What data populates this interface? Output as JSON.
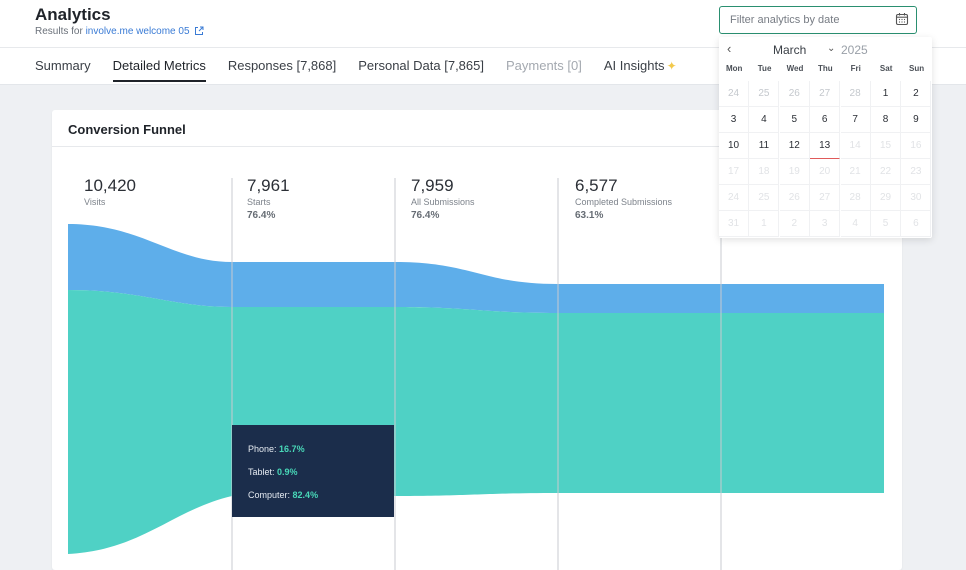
{
  "header": {
    "title": "Analytics",
    "results_prefix": "Results for",
    "results_link": "involve.me welcome 05"
  },
  "tabs": [
    {
      "label": "Summary"
    },
    {
      "label": "Detailed Metrics"
    },
    {
      "label": "Responses [7,868]"
    },
    {
      "label": "Personal Data [7,865]"
    },
    {
      "label": "Payments [0]"
    },
    {
      "label": "AI Insights"
    }
  ],
  "date_filter": {
    "placeholder": "Filter analytics by date"
  },
  "card": {
    "title": "Conversion Funnel"
  },
  "stages": [
    {
      "value": "10,420",
      "label": "Visits",
      "pct": ""
    },
    {
      "value": "7,961",
      "label": "Starts",
      "pct": "76.4%"
    },
    {
      "value": "7,959",
      "label": "All Submissions",
      "pct": "76.4%"
    },
    {
      "value": "6,577",
      "label": "Completed Submissions",
      "pct": "63.1%"
    }
  ],
  "tooltip": [
    {
      "label": "Phone:",
      "value": "16.7%"
    },
    {
      "label": "Tablet:",
      "value": "0.9%"
    },
    {
      "label": "Computer:",
      "value": "82.4%"
    }
  ],
  "calendar": {
    "month": "March",
    "year": "2025",
    "weekdays": [
      "Mon",
      "Tue",
      "Wed",
      "Thu",
      "Fri",
      "Sat",
      "Sun"
    ],
    "weeks": [
      [
        "24",
        "25",
        "26",
        "27",
        "28",
        "1",
        "2"
      ],
      [
        "3",
        "4",
        "5",
        "6",
        "7",
        "8",
        "9"
      ],
      [
        "10",
        "11",
        "12",
        "13",
        "14",
        "15",
        "16"
      ],
      [
        "17",
        "18",
        "19",
        "20",
        "21",
        "22",
        "23"
      ],
      [
        "24",
        "25",
        "26",
        "27",
        "28",
        "29",
        "30"
      ],
      [
        "31",
        "1",
        "2",
        "3",
        "4",
        "5",
        "6"
      ]
    ],
    "today": "13"
  },
  "colors": {
    "funnel_top": "#5eaeea",
    "funnel_main": "#4fd1c5",
    "accent": "#2a8f70"
  }
}
